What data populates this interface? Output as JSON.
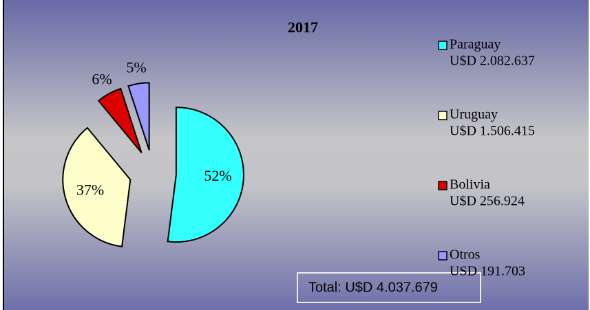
{
  "chart_data": {
    "type": "pie",
    "title": "2017",
    "categories": [
      "Paraguay",
      "Uruguay",
      "Bolivia",
      "Otros"
    ],
    "values": [
      52,
      37,
      6,
      5
    ],
    "value_labels": [
      "52%",
      "37%",
      "6%",
      "5%"
    ],
    "colors": [
      "#33ffff",
      "#ffffcc",
      "#dd0000",
      "#9999ff"
    ],
    "amounts": [
      "U$D 2.082.637",
      "U$D 1.506.415",
      "U$D 256.924",
      "USD 191.703"
    ],
    "total": "Total: U$D 4.037.679",
    "exploded": true
  }
}
